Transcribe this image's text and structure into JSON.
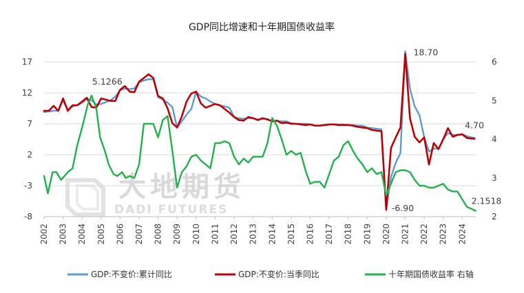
{
  "chart_data": {
    "type": "line",
    "title": "GDP同比增速和十年期国债收益率",
    "watermark": {
      "cn": "大地期货",
      "en": "DADI FUTURES"
    },
    "xlim": [
      2002,
      2024.75
    ],
    "x_tick_labels": [
      "2002",
      "2003",
      "2004",
      "2005",
      "2006",
      "2007",
      "2008",
      "2009",
      "2010",
      "2011",
      "2012",
      "2013",
      "2014",
      "2015",
      "2016",
      "2017",
      "2018",
      "2019",
      "2020",
      "2021",
      "2022",
      "2023",
      "2024"
    ],
    "y_left": {
      "min": -8,
      "max": 17,
      "ticks": [
        "17",
        "12",
        "7",
        "2",
        "-3",
        "-8"
      ]
    },
    "y_right": {
      "min": 2,
      "max": 6,
      "ticks": [
        "6",
        "5",
        "4",
        "3",
        "2"
      ]
    },
    "annotations": [
      {
        "text": "5.1266",
        "x": 2004.75,
        "y": 5.13,
        "axis": "right"
      },
      {
        "text": "18.70",
        "x": 2021.0,
        "y": 18.7,
        "axis": "left"
      },
      {
        "text": "-6.90",
        "x": 2020.0,
        "y": -6.9,
        "axis": "left"
      },
      {
        "text": "4.70",
        "x": 2024.5,
        "y": 4.7,
        "axis": "left"
      },
      {
        "text": "2.1518",
        "x": 2024.7,
        "y": 2.15,
        "axis": "right"
      }
    ],
    "series": [
      {
        "name": "GDP:不变价:累计同比",
        "color": "#5b9bd5",
        "axis": "left",
        "points": [
          [
            2002.0,
            8.9
          ],
          [
            2002.25,
            9.0
          ],
          [
            2002.5,
            9.1
          ],
          [
            2002.75,
            9.1
          ],
          [
            2003.0,
            10.8
          ],
          [
            2003.25,
            9.2
          ],
          [
            2003.5,
            9.8
          ],
          [
            2003.75,
            10.0
          ],
          [
            2004.0,
            10.4
          ],
          [
            2004.25,
            11.0
          ],
          [
            2004.5,
            10.8
          ],
          [
            2004.75,
            10.1
          ],
          [
            2005.0,
            10.2
          ],
          [
            2005.25,
            10.5
          ],
          [
            2005.5,
            10.8
          ],
          [
            2005.75,
            11.4
          ],
          [
            2006.0,
            12.4
          ],
          [
            2006.25,
            12.7
          ],
          [
            2006.5,
            12.6
          ],
          [
            2006.75,
            12.7
          ],
          [
            2007.0,
            13.7
          ],
          [
            2007.25,
            14.0
          ],
          [
            2007.5,
            14.2
          ],
          [
            2007.75,
            14.2
          ],
          [
            2008.0,
            11.3
          ],
          [
            2008.25,
            10.9
          ],
          [
            2008.5,
            10.4
          ],
          [
            2008.75,
            9.7
          ],
          [
            2009.0,
            6.4
          ],
          [
            2009.25,
            7.4
          ],
          [
            2009.5,
            8.5
          ],
          [
            2009.75,
            9.4
          ],
          [
            2010.0,
            12.2
          ],
          [
            2010.25,
            11.4
          ],
          [
            2010.5,
            11.1
          ],
          [
            2010.75,
            10.6
          ],
          [
            2011.0,
            10.2
          ],
          [
            2011.25,
            10.0
          ],
          [
            2011.5,
            9.8
          ],
          [
            2011.75,
            9.6
          ],
          [
            2012.0,
            8.1
          ],
          [
            2012.25,
            7.9
          ],
          [
            2012.5,
            7.8
          ],
          [
            2012.75,
            7.9
          ],
          [
            2013.0,
            7.9
          ],
          [
            2013.25,
            7.7
          ],
          [
            2013.5,
            7.8
          ],
          [
            2013.75,
            7.8
          ],
          [
            2014.0,
            7.4
          ],
          [
            2014.25,
            7.5
          ],
          [
            2014.5,
            7.4
          ],
          [
            2014.75,
            7.4
          ],
          [
            2015.0,
            7.1
          ],
          [
            2015.25,
            7.0
          ],
          [
            2015.5,
            7.0
          ],
          [
            2015.75,
            7.0
          ],
          [
            2016.0,
            6.9
          ],
          [
            2016.25,
            6.7
          ],
          [
            2016.5,
            6.7
          ],
          [
            2016.75,
            6.8
          ],
          [
            2017.0,
            6.9
          ],
          [
            2017.25,
            6.9
          ],
          [
            2017.5,
            6.9
          ],
          [
            2017.75,
            6.9
          ],
          [
            2018.0,
            6.8
          ],
          [
            2018.25,
            6.8
          ],
          [
            2018.5,
            6.7
          ],
          [
            2018.75,
            6.7
          ],
          [
            2019.0,
            6.4
          ],
          [
            2019.25,
            6.3
          ],
          [
            2019.5,
            6.2
          ],
          [
            2019.75,
            6.1
          ],
          [
            2020.0,
            -6.9
          ],
          [
            2020.25,
            -1.6
          ],
          [
            2020.5,
            0.7
          ],
          [
            2020.75,
            2.3
          ],
          [
            2021.0,
            18.7
          ],
          [
            2021.25,
            12.7
          ],
          [
            2021.5,
            9.8
          ],
          [
            2021.75,
            8.4
          ],
          [
            2022.0,
            4.8
          ],
          [
            2022.25,
            2.5
          ],
          [
            2022.5,
            3.0
          ],
          [
            2022.75,
            3.0
          ],
          [
            2023.0,
            4.5
          ],
          [
            2023.25,
            5.5
          ],
          [
            2023.5,
            5.2
          ],
          [
            2023.75,
            5.2
          ],
          [
            2024.0,
            5.3
          ],
          [
            2024.25,
            5.0
          ],
          [
            2024.5,
            4.8
          ],
          [
            2024.65,
            4.7
          ]
        ]
      },
      {
        "name": "GDP:不变价:当季同比",
        "color": "#c00000",
        "axis": "left",
        "points": [
          [
            2002.0,
            9.1
          ],
          [
            2002.25,
            9.1
          ],
          [
            2002.5,
            9.9
          ],
          [
            2002.75,
            9.1
          ],
          [
            2003.0,
            11.1
          ],
          [
            2003.25,
            9.1
          ],
          [
            2003.5,
            10.0
          ],
          [
            2003.75,
            10.0
          ],
          [
            2004.0,
            10.6
          ],
          [
            2004.25,
            11.2
          ],
          [
            2004.5,
            9.7
          ],
          [
            2004.75,
            9.6
          ],
          [
            2005.0,
            11.1
          ],
          [
            2005.25,
            10.9
          ],
          [
            2005.5,
            10.7
          ],
          [
            2005.75,
            10.7
          ],
          [
            2006.0,
            12.5
          ],
          [
            2006.25,
            13.1
          ],
          [
            2006.5,
            12.2
          ],
          [
            2006.75,
            12.1
          ],
          [
            2007.0,
            13.8
          ],
          [
            2007.25,
            14.4
          ],
          [
            2007.5,
            15.0
          ],
          [
            2007.75,
            14.4
          ],
          [
            2008.0,
            11.5
          ],
          [
            2008.25,
            11.1
          ],
          [
            2008.5,
            9.5
          ],
          [
            2008.75,
            7.1
          ],
          [
            2009.0,
            6.4
          ],
          [
            2009.25,
            8.2
          ],
          [
            2009.5,
            10.6
          ],
          [
            2009.75,
            11.9
          ],
          [
            2010.0,
            12.2
          ],
          [
            2010.25,
            10.3
          ],
          [
            2010.5,
            9.6
          ],
          [
            2010.75,
            9.9
          ],
          [
            2011.0,
            10.2
          ],
          [
            2011.25,
            10.0
          ],
          [
            2011.5,
            9.4
          ],
          [
            2011.75,
            8.8
          ],
          [
            2012.0,
            8.1
          ],
          [
            2012.25,
            7.6
          ],
          [
            2012.5,
            7.5
          ],
          [
            2012.75,
            8.1
          ],
          [
            2013.0,
            7.9
          ],
          [
            2013.25,
            7.6
          ],
          [
            2013.5,
            7.9
          ],
          [
            2013.75,
            7.7
          ],
          [
            2014.0,
            7.4
          ],
          [
            2014.25,
            7.5
          ],
          [
            2014.5,
            7.1
          ],
          [
            2014.75,
            7.2
          ],
          [
            2015.0,
            7.0
          ],
          [
            2015.25,
            7.0
          ],
          [
            2015.5,
            6.9
          ],
          [
            2015.75,
            6.8
          ],
          [
            2016.0,
            6.9
          ],
          [
            2016.25,
            6.7
          ],
          [
            2016.5,
            6.7
          ],
          [
            2016.75,
            6.8
          ],
          [
            2017.0,
            6.9
          ],
          [
            2017.25,
            6.9
          ],
          [
            2017.5,
            6.8
          ],
          [
            2017.75,
            6.8
          ],
          [
            2018.0,
            6.8
          ],
          [
            2018.25,
            6.7
          ],
          [
            2018.5,
            6.5
          ],
          [
            2018.75,
            6.4
          ],
          [
            2019.0,
            6.3
          ],
          [
            2019.25,
            6.0
          ],
          [
            2019.5,
            5.9
          ],
          [
            2019.75,
            5.8
          ],
          [
            2020.0,
            -6.9
          ],
          [
            2020.25,
            3.1
          ],
          [
            2020.5,
            4.8
          ],
          [
            2020.75,
            6.4
          ],
          [
            2021.0,
            18.3
          ],
          [
            2021.25,
            7.9
          ],
          [
            2021.5,
            4.9
          ],
          [
            2021.75,
            4.0
          ],
          [
            2022.0,
            4.8
          ],
          [
            2022.25,
            0.4
          ],
          [
            2022.5,
            3.9
          ],
          [
            2022.75,
            2.9
          ],
          [
            2023.0,
            4.5
          ],
          [
            2023.25,
            6.3
          ],
          [
            2023.5,
            4.9
          ],
          [
            2023.75,
            5.2
          ],
          [
            2024.0,
            5.3
          ],
          [
            2024.25,
            4.7
          ],
          [
            2024.5,
            4.6
          ],
          [
            2024.65,
            4.6
          ]
        ]
      },
      {
        "name": "十年期国债收益率 右轴",
        "color": "#1fb14a",
        "axis": "right",
        "points": [
          [
            2002.0,
            3.05
          ],
          [
            2002.2,
            2.6
          ],
          [
            2002.45,
            3.15
          ],
          [
            2002.65,
            3.15
          ],
          [
            2002.9,
            2.95
          ],
          [
            2003.25,
            3.15
          ],
          [
            2003.5,
            3.25
          ],
          [
            2003.75,
            3.85
          ],
          [
            2004.0,
            4.3
          ],
          [
            2004.3,
            4.9
          ],
          [
            2004.5,
            5.13
          ],
          [
            2004.75,
            4.8
          ],
          [
            2004.95,
            4.05
          ],
          [
            2005.2,
            3.7
          ],
          [
            2005.4,
            3.35
          ],
          [
            2005.65,
            3.1
          ],
          [
            2005.85,
            3.05
          ],
          [
            2006.1,
            3.15
          ],
          [
            2006.3,
            3.0
          ],
          [
            2006.5,
            3.05
          ],
          [
            2006.75,
            3.0
          ],
          [
            2007.0,
            3.35
          ],
          [
            2007.25,
            4.4
          ],
          [
            2007.5,
            4.4
          ],
          [
            2007.75,
            4.4
          ],
          [
            2008.0,
            4.05
          ],
          [
            2008.25,
            4.5
          ],
          [
            2008.5,
            4.6
          ],
          [
            2008.75,
            3.7
          ],
          [
            2009.0,
            2.75
          ],
          [
            2009.25,
            3.15
          ],
          [
            2009.5,
            3.3
          ],
          [
            2009.75,
            3.55
          ],
          [
            2010.0,
            3.6
          ],
          [
            2010.25,
            3.45
          ],
          [
            2010.5,
            3.35
          ],
          [
            2010.75,
            3.25
          ],
          [
            2011.0,
            3.9
          ],
          [
            2011.25,
            3.9
          ],
          [
            2011.5,
            3.95
          ],
          [
            2011.75,
            3.9
          ],
          [
            2012.0,
            3.55
          ],
          [
            2012.25,
            3.35
          ],
          [
            2012.5,
            3.5
          ],
          [
            2012.75,
            3.4
          ],
          [
            2013.0,
            3.55
          ],
          [
            2013.25,
            3.55
          ],
          [
            2013.5,
            3.55
          ],
          [
            2013.75,
            3.9
          ],
          [
            2014.0,
            4.55
          ],
          [
            2014.25,
            4.35
          ],
          [
            2014.5,
            4.0
          ],
          [
            2014.75,
            3.6
          ],
          [
            2015.0,
            3.7
          ],
          [
            2015.25,
            3.6
          ],
          [
            2015.5,
            3.65
          ],
          [
            2015.75,
            3.2
          ],
          [
            2016.0,
            2.85
          ],
          [
            2016.25,
            2.9
          ],
          [
            2016.5,
            2.9
          ],
          [
            2016.75,
            2.75
          ],
          [
            2017.0,
            3.1
          ],
          [
            2017.25,
            3.45
          ],
          [
            2017.5,
            3.55
          ],
          [
            2017.75,
            3.85
          ],
          [
            2018.0,
            3.95
          ],
          [
            2018.25,
            3.7
          ],
          [
            2018.5,
            3.5
          ],
          [
            2018.75,
            3.35
          ],
          [
            2019.0,
            3.15
          ],
          [
            2019.25,
            3.25
          ],
          [
            2019.5,
            3.1
          ],
          [
            2019.75,
            3.15
          ],
          [
            2020.0,
            2.55
          ],
          [
            2020.25,
            2.85
          ],
          [
            2020.5,
            3.15
          ],
          [
            2020.75,
            3.2
          ],
          [
            2021.0,
            3.2
          ],
          [
            2021.25,
            3.15
          ],
          [
            2021.5,
            2.95
          ],
          [
            2021.75,
            2.8
          ],
          [
            2022.0,
            2.8
          ],
          [
            2022.25,
            2.75
          ],
          [
            2022.5,
            2.75
          ],
          [
            2022.75,
            2.8
          ],
          [
            2023.0,
            2.85
          ],
          [
            2023.25,
            2.7
          ],
          [
            2023.5,
            2.65
          ],
          [
            2023.75,
            2.65
          ],
          [
            2024.0,
            2.45
          ],
          [
            2024.25,
            2.25
          ],
          [
            2024.5,
            2.2
          ],
          [
            2024.7,
            2.15
          ]
        ]
      }
    ]
  }
}
